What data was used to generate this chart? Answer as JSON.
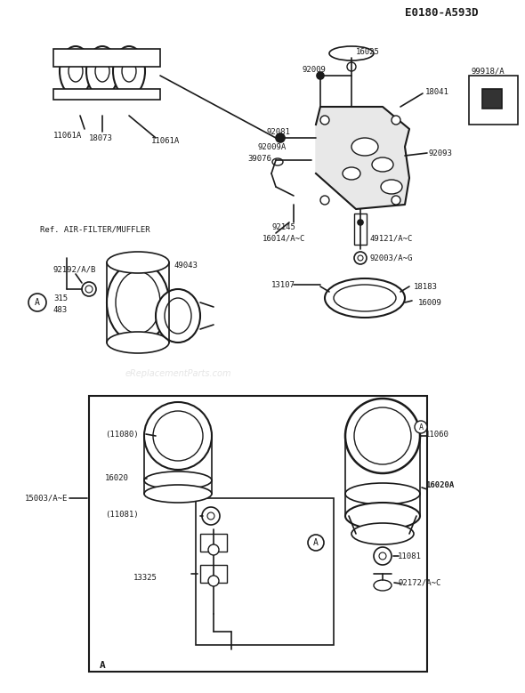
{
  "title": "E0180-A593D",
  "bg_color": "#ffffff",
  "fig_width": 5.9,
  "fig_height": 7.79,
  "watermark": "eReplacementParts.com",
  "labels": {
    "top_right_box": "99918/A",
    "ref_label": "Ref. AIR-FILTER/MUFFLER",
    "gasket_labels": [
      "11061A",
      "18073",
      "11061A"
    ],
    "carb_top_labels": [
      "92009",
      "16025",
      "18041"
    ],
    "carb_mid_labels": [
      "92081",
      "92009A",
      "92093"
    ],
    "carb_left_labels": [
      "39076",
      "92145",
      "16014/A~C"
    ],
    "carb_right_labels": [
      "49121/A~C",
      "92003/A~G"
    ],
    "bowl_labels": [
      "13107",
      "18183",
      "16009"
    ],
    "filter_labels": [
      "92192/A/B",
      "315",
      "483",
      "49043"
    ],
    "inset_labels": [
      "(11080)",
      "16020",
      "(11081)",
      "13325",
      "11060",
      "16020A",
      "11081",
      "92172/A~C"
    ],
    "outer_label": "15003/A~E",
    "inset_A": "A"
  }
}
